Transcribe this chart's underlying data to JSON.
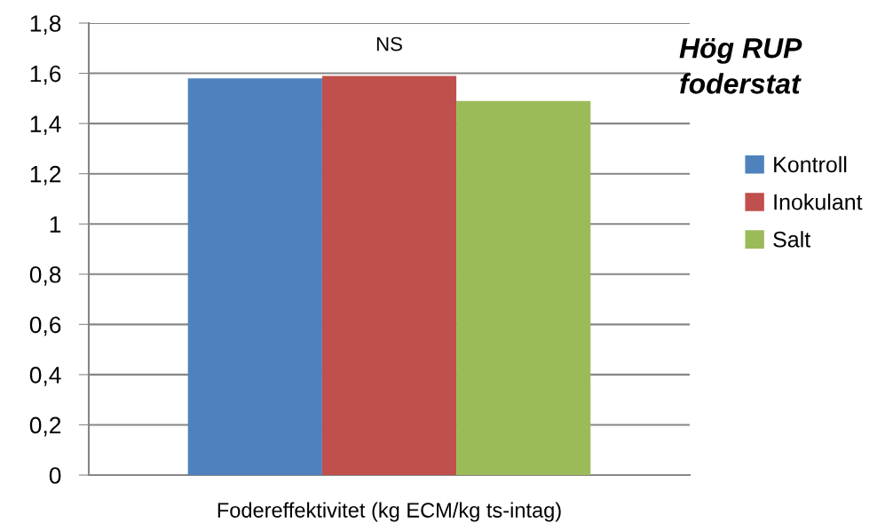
{
  "chart_data": {
    "type": "bar",
    "title": "Hög RUP\nfoderstat",
    "categories": [
      "Fodereffektivitet (kg ECM/kg ts-intag)"
    ],
    "series": [
      {
        "name": "Kontroll",
        "color": "#4f81bd",
        "values": [
          1.58
        ]
      },
      {
        "name": "Inokulant",
        "color": "#c0504d",
        "values": [
          1.59
        ]
      },
      {
        "name": "Salt",
        "color": "#9bbb59",
        "values": [
          1.49
        ]
      }
    ],
    "ylim": [
      0,
      1.8
    ],
    "yticks": [
      {
        "value": 0,
        "label": "0"
      },
      {
        "value": 0.2,
        "label": "0,2"
      },
      {
        "value": 0.4,
        "label": "0,4"
      },
      {
        "value": 0.6,
        "label": "0,6"
      },
      {
        "value": 0.8,
        "label": "0,8"
      },
      {
        "value": 1,
        "label": "1"
      },
      {
        "value": 1.2,
        "label": "1,2"
      },
      {
        "value": 1.4,
        "label": "1,4"
      },
      {
        "value": 1.6,
        "label": "1,6"
      },
      {
        "value": 1.8,
        "label": "1,8"
      }
    ],
    "annotations": [
      "NS"
    ],
    "grid": "y",
    "legend": "right"
  }
}
